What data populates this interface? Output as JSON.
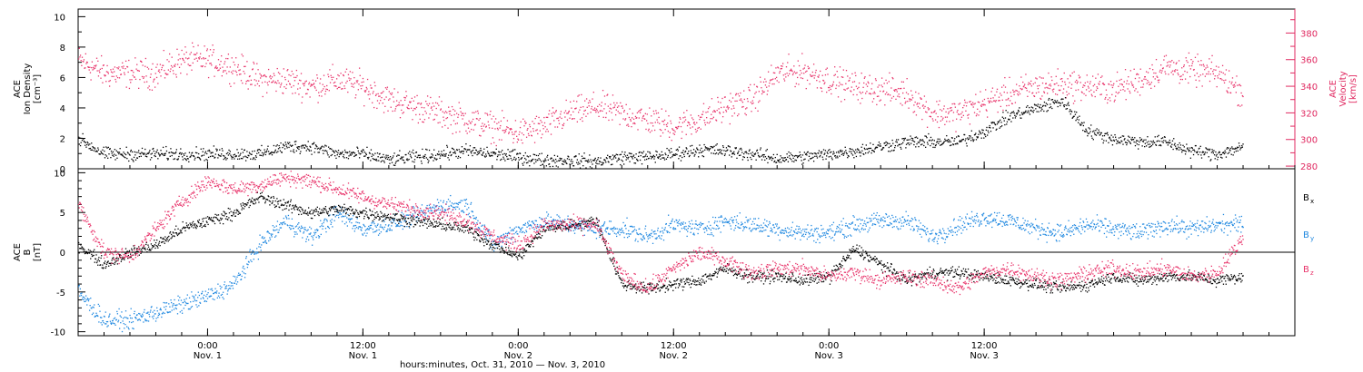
{
  "colors": {
    "black": "#000000",
    "pink": "#e8336a",
    "blue": "#1f88e0",
    "velocity_axis": "#e02860"
  },
  "chart_data": [
    {
      "type": "scatter",
      "panel": "top",
      "left_axis_label_lines": [
        "ACE",
        "Ion Density",
        "[cm⁻³]"
      ],
      "right_axis_label_lines": [
        "ACE",
        "Velocity",
        "[km/s]"
      ],
      "left_ylim": [
        0,
        10.5
      ],
      "left_yticks": [
        "0",
        "2",
        "4",
        "6",
        "8",
        "10"
      ],
      "right_ylim": [
        278,
        398
      ],
      "right_yticks": [
        "280",
        "300",
        "320",
        "340",
        "360",
        "380"
      ],
      "x_unit": "hours since 2010-10-31 14:00",
      "xlim": [
        0,
        94
      ],
      "series": [
        {
          "name": "Ion Density",
          "color_key": "black",
          "axis": "left",
          "x": [
            0,
            2,
            4,
            6,
            8,
            10,
            12,
            14,
            16,
            18,
            20,
            22,
            24,
            26,
            28,
            30,
            32,
            34,
            36,
            38,
            40,
            42,
            44,
            46,
            48,
            50,
            52,
            54,
            56,
            58,
            60,
            62,
            64,
            66,
            68,
            70,
            72,
            74,
            76,
            78,
            80,
            82,
            84,
            86,
            88,
            90
          ],
          "y": [
            2.0,
            1.0,
            1.0,
            1.0,
            1.0,
            1.0,
            1.0,
            1.0,
            1.5,
            1.5,
            1.0,
            1.0,
            0.6,
            0.8,
            1.0,
            1.2,
            1.0,
            0.8,
            0.6,
            0.6,
            0.5,
            0.8,
            0.8,
            1.0,
            1.3,
            1.2,
            1.0,
            0.7,
            0.8,
            1.0,
            1.2,
            1.5,
            1.8,
            1.8,
            1.8,
            2.5,
            3.5,
            4.0,
            4.5,
            2.5,
            2.0,
            1.8,
            1.8,
            1.2,
            1.0,
            1.5
          ]
        },
        {
          "name": "Velocity",
          "color_key": "pink",
          "axis": "right",
          "x": [
            0,
            2,
            4,
            6,
            8,
            10,
            12,
            14,
            16,
            18,
            20,
            22,
            24,
            26,
            28,
            30,
            32,
            34,
            36,
            38,
            40,
            42,
            44,
            46,
            48,
            50,
            52,
            54,
            56,
            58,
            60,
            62,
            64,
            66,
            68,
            70,
            72,
            74,
            76,
            78,
            80,
            82,
            84,
            86,
            88,
            90
          ],
          "y": [
            360,
            350,
            350,
            350,
            360,
            360,
            355,
            345,
            345,
            340,
            345,
            340,
            330,
            325,
            320,
            315,
            310,
            305,
            310,
            320,
            325,
            320,
            315,
            310,
            315,
            325,
            330,
            350,
            352,
            345,
            340,
            338,
            335,
            320,
            320,
            328,
            335,
            340,
            342,
            340,
            338,
            345,
            355,
            352,
            350,
            335
          ]
        }
      ]
    },
    {
      "type": "scatter",
      "panel": "bottom",
      "left_axis_label_lines": [
        "ACE",
        "B",
        "[nT]"
      ],
      "ylim": [
        -10.5,
        10.5
      ],
      "yticks": [
        "-10",
        "-5",
        "0",
        "5",
        "10"
      ],
      "zero_line": true,
      "x_unit": "hours since 2010-10-31 14:00",
      "xlim": [
        0,
        94
      ],
      "legend": [
        {
          "label": "B",
          "sub": "x",
          "color_key": "black"
        },
        {
          "label": "B",
          "sub": "y",
          "color_key": "blue"
        },
        {
          "label": "B",
          "sub": "z",
          "color_key": "pink"
        }
      ],
      "series": [
        {
          "name": "Bx",
          "color_key": "black",
          "x": [
            0,
            2,
            4,
            6,
            8,
            10,
            12,
            14,
            16,
            18,
            20,
            22,
            24,
            26,
            28,
            30,
            32,
            34,
            36,
            38,
            40,
            42,
            44,
            46,
            48,
            50,
            52,
            54,
            56,
            58,
            60,
            62,
            64,
            66,
            68,
            70,
            72,
            74,
            76,
            78,
            80,
            82,
            84,
            86,
            88,
            90
          ],
          "y": [
            1.0,
            -1.5,
            0.0,
            1.0,
            3.0,
            4.0,
            5.0,
            7.0,
            6.0,
            5.0,
            5.5,
            5.0,
            4.5,
            4.0,
            3.5,
            3.0,
            1.0,
            -0.5,
            3.0,
            3.5,
            4.0,
            -4.0,
            -4.5,
            -4.0,
            -3.5,
            -2.0,
            -3.0,
            -3.0,
            -3.5,
            -3.0,
            0.5,
            -1.5,
            -3.5,
            -2.5,
            -2.5,
            -3.0,
            -3.5,
            -4.0,
            -4.5,
            -4.0,
            -3.0,
            -3.5,
            -3.0,
            -3.0,
            -3.5,
            -3.0
          ]
        },
        {
          "name": "By",
          "color_key": "blue",
          "x": [
            0,
            2,
            4,
            6,
            8,
            10,
            12,
            14,
            16,
            18,
            20,
            22,
            24,
            26,
            28,
            30,
            32,
            34,
            36,
            38,
            40,
            42,
            44,
            46,
            48,
            50,
            52,
            54,
            56,
            58,
            60,
            62,
            64,
            66,
            68,
            70,
            72,
            74,
            76,
            78,
            80,
            82,
            84,
            86,
            88,
            90
          ],
          "y": [
            -5.0,
            -8.5,
            -8.5,
            -7.5,
            -6.5,
            -5.5,
            -4.0,
            1.0,
            4.0,
            2.0,
            5.0,
            3.0,
            3.5,
            4.5,
            6.0,
            6.0,
            1.0,
            3.0,
            4.0,
            3.5,
            3.0,
            3.0,
            2.0,
            3.5,
            3.0,
            4.0,
            3.5,
            3.0,
            2.5,
            2.5,
            3.5,
            4.0,
            4.0,
            2.0,
            3.5,
            4.5,
            4.0,
            3.0,
            2.5,
            3.5,
            3.0,
            2.5,
            3.5,
            3.0,
            3.5,
            3.5
          ]
        },
        {
          "name": "Bz",
          "color_key": "pink",
          "x": [
            0,
            2,
            4,
            6,
            8,
            10,
            12,
            14,
            16,
            18,
            20,
            22,
            24,
            26,
            28,
            30,
            32,
            34,
            36,
            38,
            40,
            42,
            44,
            46,
            48,
            50,
            52,
            54,
            56,
            58,
            60,
            62,
            64,
            66,
            68,
            70,
            72,
            74,
            76,
            78,
            80,
            82,
            84,
            86,
            88,
            90
          ],
          "y": [
            6.0,
            0.0,
            -0.5,
            3.0,
            6.5,
            9.0,
            8.0,
            8.5,
            9.5,
            9.0,
            8.0,
            7.0,
            6.0,
            5.5,
            5.0,
            4.0,
            2.0,
            1.0,
            3.5,
            3.5,
            3.5,
            -3.0,
            -4.5,
            -2.0,
            0.0,
            -1.0,
            -2.5,
            -2.0,
            -2.0,
            -3.0,
            -2.5,
            -3.5,
            -3.0,
            -3.5,
            -4.5,
            -2.5,
            -2.0,
            -3.0,
            -3.5,
            -2.5,
            -2.0,
            -2.5,
            -2.0,
            -3.0,
            -2.5,
            2.0
          ]
        }
      ]
    }
  ],
  "x_axis": {
    "ticks": [
      {
        "x": 10,
        "time": "0:00",
        "day": "Nov. 1"
      },
      {
        "x": 22,
        "time": "12:00",
        "day": "Nov. 1"
      },
      {
        "x": 34,
        "time": "0:00",
        "day": "Nov. 2"
      },
      {
        "x": 46,
        "time": "12:00",
        "day": "Nov. 2"
      },
      {
        "x": 58,
        "time": "0:00",
        "day": "Nov. 3"
      },
      {
        "x": 70,
        "time": "12:00",
        "day": "Nov. 3"
      }
    ],
    "title": "hours:minutes, Oct. 31, 2010 — Nov.  3, 2010"
  }
}
